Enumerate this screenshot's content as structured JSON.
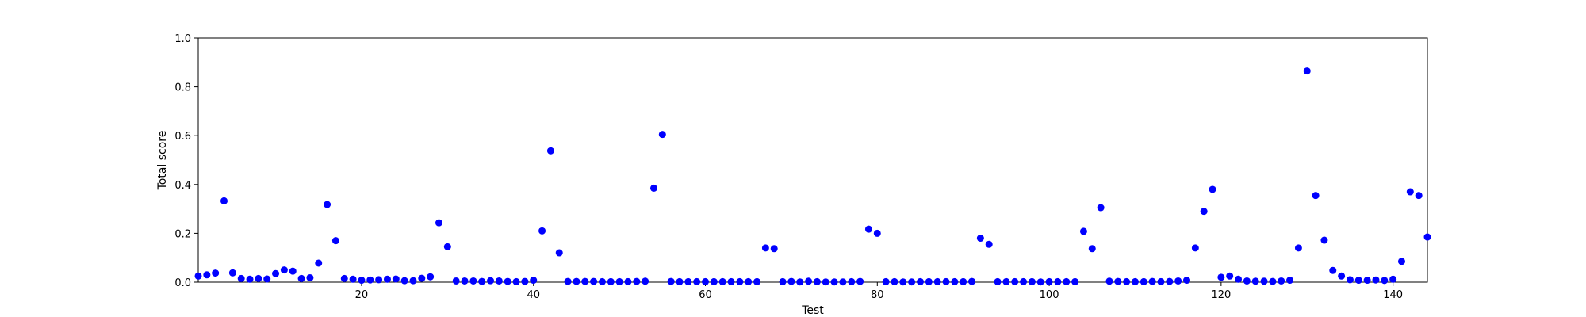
{
  "chart_data": {
    "type": "scatter",
    "xlabel": "Test",
    "ylabel": "Total score",
    "xlim": [
      1,
      144
    ],
    "ylim": [
      0.0,
      1.0
    ],
    "x_ticks": [
      20,
      40,
      60,
      80,
      100,
      120,
      140
    ],
    "y_ticks": [
      0.0,
      0.2,
      0.4,
      0.6,
      0.8,
      1.0
    ],
    "x_tick_labels": [
      "20",
      "40",
      "60",
      "80",
      "100",
      "120",
      "140"
    ],
    "y_tick_labels": [
      "0.0",
      "0.2",
      "0.4",
      "0.6",
      "0.8",
      "1.0"
    ],
    "grid": false,
    "marker_color": "#0000ff",
    "series": [
      {
        "x": [
          1,
          2,
          3,
          4,
          5,
          6,
          7,
          8,
          9,
          10,
          11,
          12,
          13,
          14,
          15,
          16,
          17,
          18,
          19,
          20,
          21,
          22,
          23,
          24,
          25,
          26,
          27,
          28,
          29,
          30,
          31,
          32,
          33,
          34,
          35,
          36,
          37,
          38,
          39,
          40,
          41,
          42,
          43,
          44,
          45,
          46,
          47,
          48,
          49,
          50,
          51,
          52,
          53,
          54,
          55,
          56,
          57,
          58,
          59,
          60,
          61,
          62,
          63,
          64,
          65,
          66,
          67,
          68,
          69,
          70,
          71,
          72,
          73,
          74,
          75,
          76,
          77,
          78,
          79,
          80,
          81,
          82,
          83,
          84,
          85,
          86,
          87,
          88,
          89,
          90,
          91,
          92,
          93,
          94,
          95,
          96,
          97,
          98,
          99,
          100,
          101,
          102,
          103,
          104,
          105,
          106,
          107,
          108,
          109,
          110,
          111,
          112,
          113,
          114,
          115,
          116,
          117,
          118,
          119,
          120,
          121,
          122,
          123,
          124,
          125,
          126,
          127,
          128,
          129,
          130,
          131,
          132,
          133,
          134,
          135,
          136,
          137,
          138,
          139,
          140,
          141,
          142,
          143,
          144
        ],
        "y": [
          0.025,
          0.03,
          0.037,
          0.333,
          0.038,
          0.015,
          0.012,
          0.015,
          0.013,
          0.035,
          0.05,
          0.045,
          0.015,
          0.018,
          0.078,
          0.318,
          0.17,
          0.015,
          0.012,
          0.008,
          0.009,
          0.01,
          0.012,
          0.013,
          0.006,
          0.006,
          0.016,
          0.022,
          0.243,
          0.145,
          0.005,
          0.005,
          0.005,
          0.003,
          0.006,
          0.005,
          0.003,
          0.002,
          0.003,
          0.008,
          0.21,
          0.538,
          0.12,
          0.003,
          0.003,
          0.003,
          0.003,
          0.002,
          0.002,
          0.002,
          0.002,
          0.003,
          0.004,
          0.385,
          0.605,
          0.003,
          0.002,
          0.002,
          0.002,
          0.002,
          0.002,
          0.002,
          0.002,
          0.002,
          0.002,
          0.002,
          0.14,
          0.137,
          0.002,
          0.003,
          0.001,
          0.004,
          0.002,
          0.001,
          0.001,
          0.001,
          0.002,
          0.003,
          0.217,
          0.2,
          0.002,
          0.002,
          0.001,
          0.001,
          0.002,
          0.002,
          0.002,
          0.002,
          0.002,
          0.002,
          0.003,
          0.18,
          0.155,
          0.002,
          0.002,
          0.002,
          0.002,
          0.002,
          0.001,
          0.002,
          0.002,
          0.002,
          0.002,
          0.208,
          0.137,
          0.305,
          0.004,
          0.003,
          0.002,
          0.002,
          0.002,
          0.003,
          0.002,
          0.003,
          0.005,
          0.008,
          0.14,
          0.29,
          0.38,
          0.02,
          0.025,
          0.012,
          0.005,
          0.004,
          0.004,
          0.003,
          0.005,
          0.008,
          0.14,
          0.865,
          0.355,
          0.172,
          0.048,
          0.025,
          0.01,
          0.008,
          0.008,
          0.009,
          0.007,
          0.012,
          0.085,
          0.37,
          0.355,
          0.185
        ]
      }
    ]
  }
}
